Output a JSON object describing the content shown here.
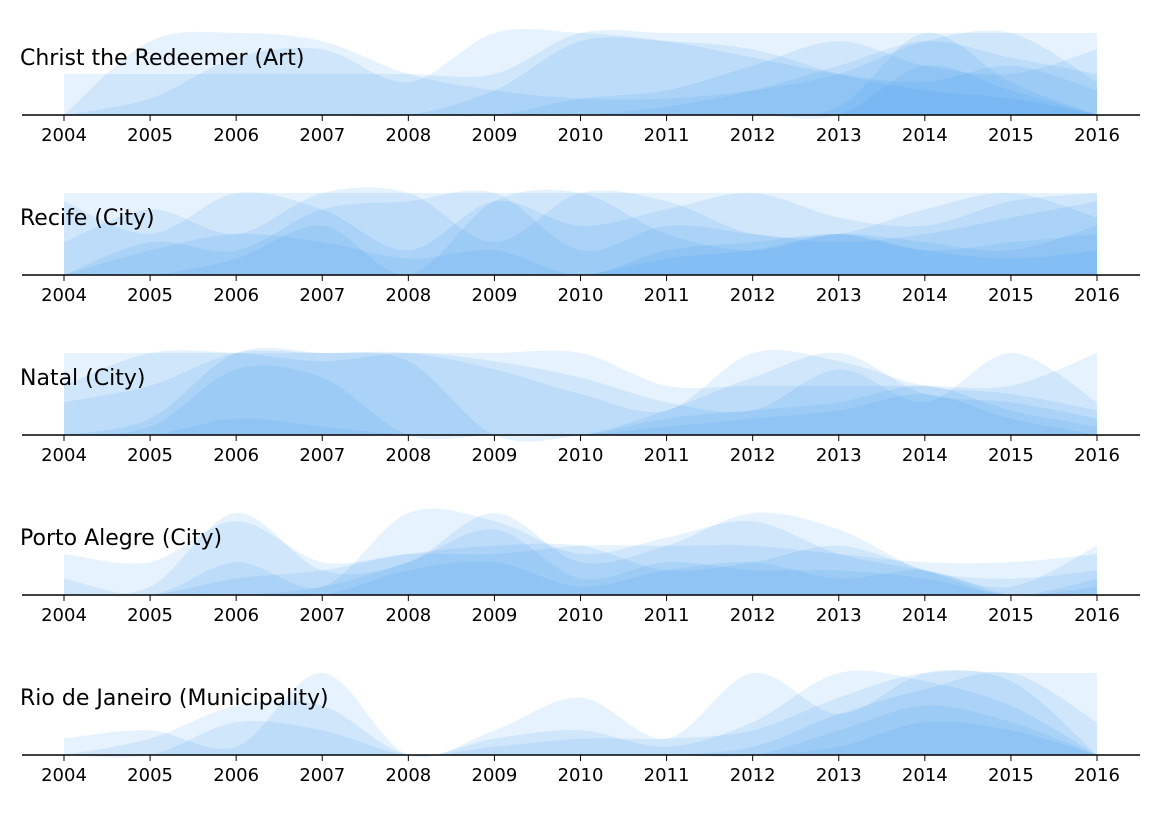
{
  "colors": {
    "area": "#2f96ee",
    "axis": "#000000",
    "text": "#000000"
  },
  "chart_data": [
    {
      "type": "area",
      "title": "Christ the Redeemer (Art)",
      "x": [
        "2004",
        "2005",
        "2006",
        "2007",
        "2008",
        "2009",
        "2010",
        "2011",
        "2012",
        "2013",
        "2014",
        "2015",
        "2016"
      ],
      "layers": [
        [
          0.5,
          0.5,
          0.5,
          0.5,
          0.5,
          0.5,
          1.0,
          1.0,
          1.0,
          1.0,
          1.0,
          1.0,
          1.0
        ],
        [
          0.0,
          0.9,
          1.0,
          0.9,
          0.5,
          0.3,
          0.2,
          0.2,
          0.3,
          0.5,
          0.9,
          1.0,
          0.4
        ],
        [
          0.0,
          0.2,
          0.7,
          0.8,
          0.4,
          1.0,
          1.0,
          0.9,
          0.7,
          0.5,
          0.4,
          0.6,
          0.3
        ],
        [
          0.0,
          0.0,
          0.0,
          0.0,
          0.0,
          0.3,
          0.9,
          0.9,
          0.8,
          0.5,
          0.3,
          0.2,
          0.0
        ],
        [
          0.0,
          0.0,
          0.0,
          0.0,
          0.0,
          0.0,
          0.2,
          0.3,
          0.6,
          0.9,
          0.6,
          0.5,
          0.8
        ],
        [
          0.0,
          0.0,
          0.0,
          0.0,
          0.0,
          0.0,
          0.0,
          0.1,
          0.3,
          0.6,
          0.9,
          0.7,
          0.5
        ],
        [
          0.0,
          0.0,
          0.0,
          0.0,
          0.0,
          0.0,
          0.0,
          0.0,
          0.0,
          0.1,
          1.0,
          0.4,
          0.0
        ],
        [
          0.0,
          0.0,
          0.0,
          0.0,
          0.0,
          0.0,
          0.0,
          0.0,
          0.0,
          0.0,
          0.6,
          0.3,
          0.0
        ]
      ]
    },
    {
      "type": "area",
      "title": "Recife (City)",
      "x": [
        "2004",
        "2005",
        "2006",
        "2007",
        "2008",
        "2009",
        "2010",
        "2011",
        "2012",
        "2013",
        "2014",
        "2015",
        "2016"
      ],
      "layers": [
        [
          1.0,
          1.0,
          1.0,
          1.0,
          1.0,
          1.0,
          1.0,
          1.0,
          1.0,
          1.0,
          1.0,
          1.0,
          1.0
        ],
        [
          0.9,
          0.5,
          1.0,
          0.8,
          0.3,
          0.9,
          0.6,
          0.8,
          1.0,
          0.7,
          0.6,
          0.9,
          1.0
        ],
        [
          0.4,
          0.8,
          0.5,
          1.0,
          1.0,
          0.4,
          1.0,
          0.9,
          0.5,
          0.5,
          0.8,
          1.0,
          0.7
        ],
        [
          0.0,
          0.4,
          0.3,
          0.8,
          0.9,
          1.0,
          0.3,
          0.6,
          0.5,
          0.4,
          0.5,
          0.7,
          0.9
        ],
        [
          0.0,
          0.0,
          0.2,
          0.6,
          0.0,
          0.9,
          1.0,
          0.5,
          0.3,
          0.5,
          0.4,
          0.3,
          0.6
        ],
        [
          0.0,
          0.3,
          0.5,
          0.4,
          0.2,
          0.3,
          0.0,
          0.3,
          0.4,
          0.5,
          0.3,
          0.4,
          0.5
        ],
        [
          0.0,
          0.0,
          0.0,
          0.0,
          0.0,
          0.0,
          0.0,
          0.2,
          0.3,
          0.5,
          0.3,
          0.2,
          0.3
        ]
      ]
    },
    {
      "type": "area",
      "title": "Natal (City)",
      "x": [
        "2004",
        "2005",
        "2006",
        "2007",
        "2008",
        "2009",
        "2010",
        "2011",
        "2012",
        "2013",
        "2014",
        "2015",
        "2016"
      ],
      "layers": [
        [
          1.0,
          1.0,
          1.0,
          1.0,
          1.0,
          1.0,
          1.0,
          0.6,
          0.6,
          0.6,
          0.6,
          0.6,
          1.0
        ],
        [
          0.6,
          1.0,
          1.0,
          0.9,
          1.0,
          0.9,
          0.7,
          0.4,
          0.3,
          0.8,
          0.4,
          1.0,
          0.4
        ],
        [
          0.4,
          0.6,
          1.0,
          1.0,
          1.0,
          0.8,
          0.5,
          0.3,
          1.0,
          0.9,
          0.6,
          0.5,
          0.3
        ],
        [
          0.0,
          0.2,
          1.0,
          1.0,
          0.9,
          0.0,
          0.0,
          0.3,
          0.7,
          1.0,
          0.5,
          0.4,
          0.2
        ],
        [
          0.0,
          0.1,
          0.8,
          0.7,
          0.0,
          0.0,
          0.0,
          0.2,
          0.3,
          0.4,
          0.6,
          0.3,
          0.1
        ],
        [
          0.0,
          0.0,
          0.2,
          0.1,
          0.0,
          0.0,
          0.0,
          0.1,
          0.2,
          0.3,
          0.5,
          0.2,
          0.0
        ]
      ]
    },
    {
      "type": "area",
      "title": "Porto Alegre (City)",
      "x": [
        "2004",
        "2005",
        "2006",
        "2007",
        "2008",
        "2009",
        "2010",
        "2011",
        "2012",
        "2013",
        "2014",
        "2015",
        "2016"
      ],
      "layers": [
        [
          0.5,
          0.4,
          0.9,
          0.4,
          0.5,
          0.5,
          0.6,
          0.6,
          0.6,
          0.5,
          0.4,
          0.4,
          0.5
        ],
        [
          0.2,
          0.0,
          0.4,
          0.1,
          1.0,
          0.9,
          0.5,
          0.7,
          0.9,
          0.5,
          0.3,
          0.1,
          0.6
        ],
        [
          0.0,
          0.1,
          1.0,
          0.3,
          0.4,
          1.0,
          0.4,
          0.6,
          1.0,
          0.8,
          0.3,
          0.2,
          0.3
        ],
        [
          0.0,
          0.0,
          0.2,
          0.3,
          0.5,
          0.6,
          0.6,
          0.3,
          0.4,
          0.6,
          0.3,
          0.0,
          0.2
        ],
        [
          0.0,
          0.0,
          0.0,
          0.1,
          0.4,
          0.8,
          0.2,
          0.4,
          0.3,
          0.3,
          0.2,
          0.0,
          0.1
        ],
        [
          0.0,
          0.0,
          0.0,
          0.0,
          0.3,
          0.4,
          0.1,
          0.3,
          0.4,
          0.2,
          0.3,
          0.0,
          0.0
        ]
      ]
    },
    {
      "type": "area",
      "title": "Rio de Janeiro (Municipality)",
      "x": [
        "2004",
        "2005",
        "2006",
        "2007",
        "2008",
        "2009",
        "2010",
        "2011",
        "2012",
        "2013",
        "2014",
        "2015",
        "2016"
      ],
      "layers": [
        [
          0.2,
          0.3,
          0.1,
          1.0,
          0.0,
          0.3,
          0.7,
          0.2,
          1.0,
          0.5,
          1.0,
          1.0,
          1.0
        ],
        [
          0.0,
          0.2,
          0.6,
          0.6,
          0.0,
          0.2,
          0.3,
          0.1,
          0.4,
          1.0,
          0.9,
          0.6,
          0.0
        ],
        [
          0.0,
          0.0,
          0.4,
          0.3,
          0.0,
          0.1,
          0.2,
          0.2,
          0.3,
          0.7,
          1.0,
          0.9,
          0.0
        ],
        [
          0.0,
          0.0,
          0.0,
          0.0,
          0.0,
          0.0,
          0.0,
          0.0,
          0.1,
          0.5,
          0.8,
          1.0,
          0.4
        ],
        [
          0.0,
          0.0,
          0.0,
          0.0,
          0.0,
          0.0,
          0.0,
          0.0,
          0.0,
          0.3,
          0.6,
          0.4,
          0.0
        ],
        [
          0.0,
          0.0,
          0.0,
          0.0,
          0.0,
          0.0,
          0.0,
          0.0,
          0.0,
          0.1,
          0.4,
          0.3,
          0.0
        ]
      ]
    }
  ]
}
